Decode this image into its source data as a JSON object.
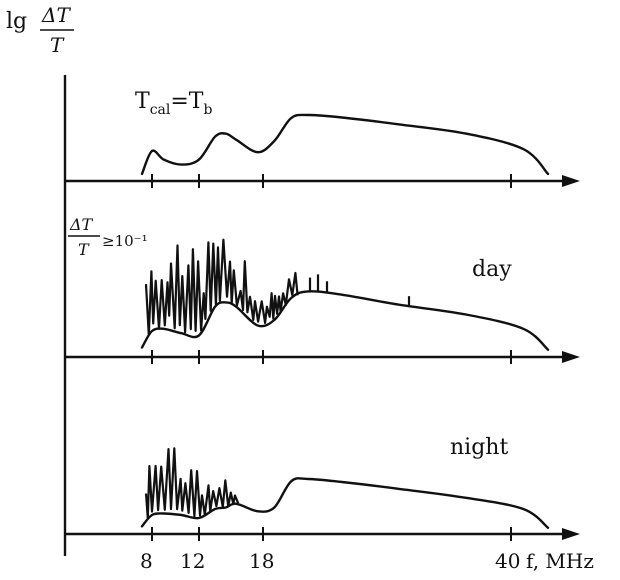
{
  "chart_data": {
    "type": "line",
    "title": "",
    "y_axis_label": {
      "prefix": "lg",
      "numerator": "ΔT",
      "denominator": "T"
    },
    "x_axis_label": "f, MHz",
    "x_ticks": [
      "8",
      "12",
      "18",
      "40"
    ],
    "x_tick_values": [
      8,
      12,
      18,
      40
    ],
    "grid": false,
    "log_scale_y": true,
    "panels": [
      {
        "id": "calibration",
        "label": "T",
        "label_sub": "cal",
        "label_eq": "=T",
        "label_eq_sub": "b",
        "curve": {
          "x": [
            7.2,
            8.0,
            9.0,
            10.5,
            12.0,
            13.5,
            14.5,
            15.5,
            17.5,
            19.0,
            20.5,
            22.0,
            25.0,
            30.0,
            36.0,
            42.0,
            46.0
          ],
          "y": [
            0.05,
            0.42,
            0.28,
            0.2,
            0.28,
            0.65,
            0.7,
            0.6,
            0.4,
            0.58,
            0.95,
            1.0,
            0.96,
            0.85,
            0.7,
            0.45,
            0.05
          ]
        }
      },
      {
        "id": "day",
        "label": "day",
        "annotation": {
          "numerator": "ΔT",
          "denominator": "T",
          "relation": "≥10⁻¹"
        },
        "curve": {
          "x": [
            7.2,
            8.0,
            9.0,
            10.5,
            12.0,
            13.5,
            14.5,
            15.5,
            17.5,
            19.0,
            20.5,
            22.0,
            25.0,
            30.0,
            36.0,
            42.0,
            46.0
          ],
          "y": [
            0.05,
            0.2,
            0.22,
            0.18,
            0.16,
            0.42,
            0.46,
            0.42,
            0.25,
            0.3,
            0.5,
            0.56,
            0.53,
            0.44,
            0.35,
            0.22,
            0.03
          ]
        }
      },
      {
        "id": "night",
        "label": "night",
        "curve": {
          "x": [
            7.2,
            8.0,
            9.0,
            10.5,
            12.0,
            13.5,
            14.5,
            15.5,
            17.5,
            19.0,
            20.5,
            22.0,
            25.0,
            30.0,
            36.0,
            42.0,
            46.0
          ],
          "y": [
            0.05,
            0.2,
            0.22,
            0.2,
            0.16,
            0.28,
            0.3,
            0.35,
            0.25,
            0.3,
            0.65,
            0.68,
            0.64,
            0.55,
            0.43,
            0.28,
            0.03
          ]
        }
      }
    ]
  }
}
